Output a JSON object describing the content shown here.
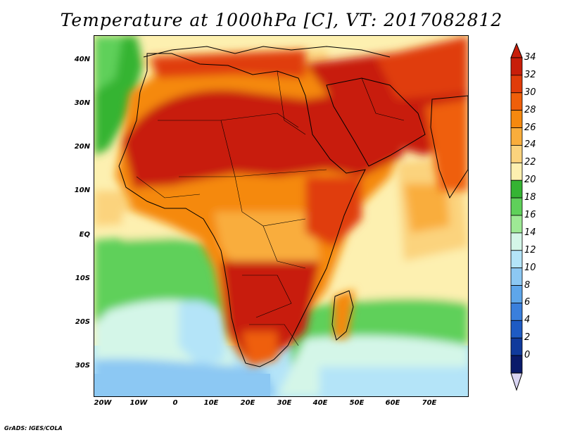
{
  "title": "Temperature at 1000hPa [C], VT: 2017082812",
  "credit": "GrADS: IGES/COLA",
  "map": {
    "region": "Africa, Middle East, western Indian Ocean",
    "variable": "Temperature at 1000hPa",
    "unit": "C",
    "valid_time": "2017082812",
    "lon_range": [
      -23,
      80
    ],
    "lat_range": [
      -37,
      45
    ],
    "lat_labels": [
      "40N",
      "30N",
      "20N",
      "10N",
      "EQ",
      "10S",
      "20S",
      "30S"
    ],
    "lon_labels": [
      "20W",
      "10W",
      "0",
      "10E",
      "20E",
      "30E",
      "40E",
      "50E",
      "60E",
      "70E"
    ]
  },
  "colorbar": {
    "labels": [
      "34",
      "32",
      "30",
      "28",
      "26",
      "24",
      "22",
      "20",
      "18",
      "16",
      "14",
      "12",
      "10",
      "8",
      "6",
      "4",
      "2",
      "0"
    ],
    "colors": [
      "#c81e0a",
      "#e03c0a",
      "#ef5f0a",
      "#f5890f",
      "#f9ad3c",
      "#fbd37d",
      "#fdf0b0",
      "#35b433",
      "#5fd05a",
      "#9ee995",
      "#d4f6e8",
      "#b4e4f8",
      "#8cc8f3",
      "#5ea6ea",
      "#3a7fdc",
      "#1e5bc4",
      "#103a9c",
      "#0a1a6a"
    ],
    "over_color": "#c81e0a",
    "under_color": "#d8d4f2"
  }
}
